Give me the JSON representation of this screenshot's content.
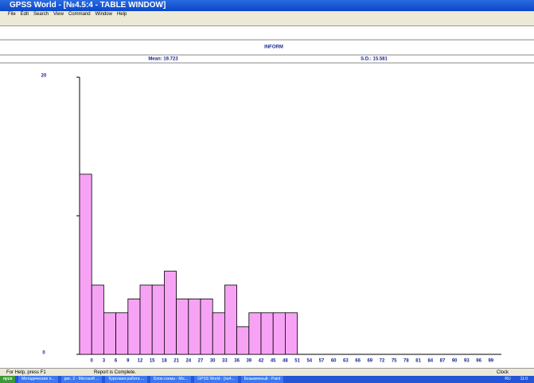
{
  "window": {
    "title": "GPSS World - [№4.5:4 - TABLE WINDOW]",
    "menu": [
      "File",
      "Edit",
      "Search",
      "View",
      "Command",
      "Window",
      "Help"
    ],
    "header": "INFORM",
    "mean": "Mean: 19.723",
    "sd": "S.D.: 15.581",
    "status": [
      "For Help, press F1",
      "Report is Complete.",
      "Clock"
    ],
    "taskbar": {
      "start": "пуск",
      "items": [
        "Методическое п...",
        "рис. 2 - Microsoft ...",
        "Курсовая работа ...",
        "Блок-схема - Mic...",
        "GPSS World - [№4...",
        "Безымянный - Paint"
      ],
      "lang": "RU",
      "clock": "11:0"
    }
  },
  "chart_data": {
    "type": "bar",
    "color": "#f7a3f5",
    "categories": [
      "0",
      "3",
      "6",
      "9",
      "12",
      "15",
      "18",
      "21",
      "24",
      "27",
      "30",
      "33",
      "36",
      "39",
      "42",
      "45",
      "48",
      "51",
      "54",
      "57",
      "60",
      "63",
      "66",
      "69",
      "72",
      "75",
      "78",
      "81",
      "84",
      "87",
      "90",
      "93",
      "96",
      "99"
    ],
    "values": [
      13,
      5,
      3,
      3,
      4,
      5,
      5,
      6,
      4,
      4,
      4,
      3,
      5,
      2,
      3,
      3,
      3,
      3,
      0,
      0,
      0,
      0,
      0,
      0,
      0,
      0,
      0,
      0,
      0,
      0,
      0,
      0,
      0,
      0
    ],
    "ylim": [
      0,
      20
    ],
    "yticks": [
      0,
      20
    ],
    "yminorticks": [
      10
    ]
  }
}
